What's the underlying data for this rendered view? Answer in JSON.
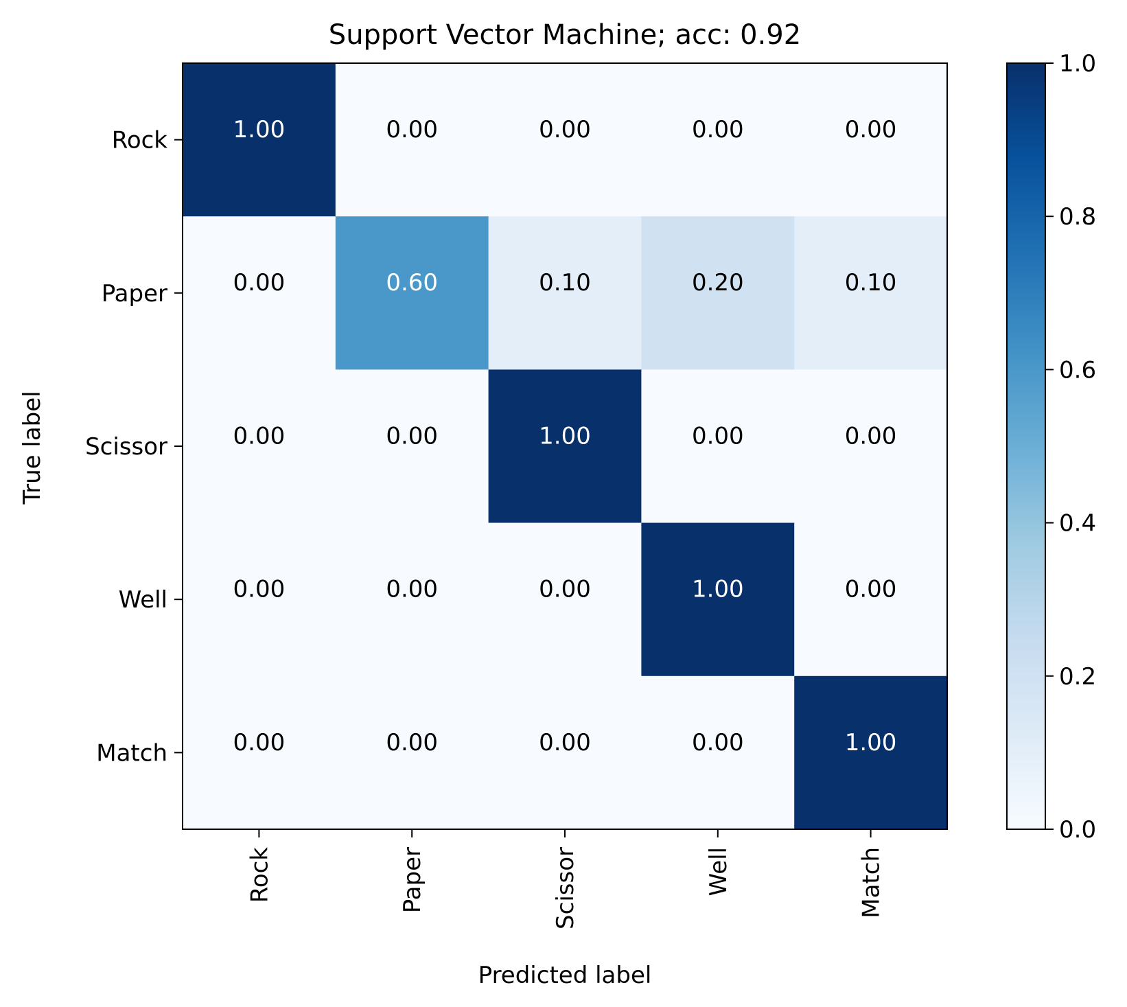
{
  "chart_data": {
    "type": "heatmap",
    "title": "Support Vector Machine; acc: 0.92",
    "xlabel": "Predicted label",
    "ylabel": "True label",
    "x_categories": [
      "Rock",
      "Paper",
      "Scissor",
      "Well",
      "Match"
    ],
    "y_categories": [
      "Rock",
      "Paper",
      "Scissor",
      "Well",
      "Match"
    ],
    "values": [
      [
        1.0,
        0.0,
        0.0,
        0.0,
        0.0
      ],
      [
        0.0,
        0.6,
        0.1,
        0.2,
        0.1
      ],
      [
        0.0,
        0.0,
        1.0,
        0.0,
        0.0
      ],
      [
        0.0,
        0.0,
        0.0,
        1.0,
        0.0
      ],
      [
        0.0,
        0.0,
        0.0,
        0.0,
        1.0
      ]
    ],
    "value_format": "0.00",
    "colormap": "Blues",
    "colormap_stops": [
      "#f7fbff",
      "#deebf7",
      "#c6dbef",
      "#9ecae1",
      "#6baed6",
      "#4292c6",
      "#2171b5",
      "#08519c",
      "#08306b"
    ],
    "colorbar": {
      "range": [
        0.0,
        1.0
      ],
      "ticks": [
        0.0,
        0.2,
        0.4,
        0.6,
        0.8,
        1.0
      ],
      "tick_labels": [
        "0.0",
        "0.2",
        "0.4",
        "0.6",
        "0.8",
        "1.0"
      ]
    },
    "annotation_colors": {
      "dark_text": "#000000",
      "light_text": "#ffffff"
    },
    "grid": false
  }
}
